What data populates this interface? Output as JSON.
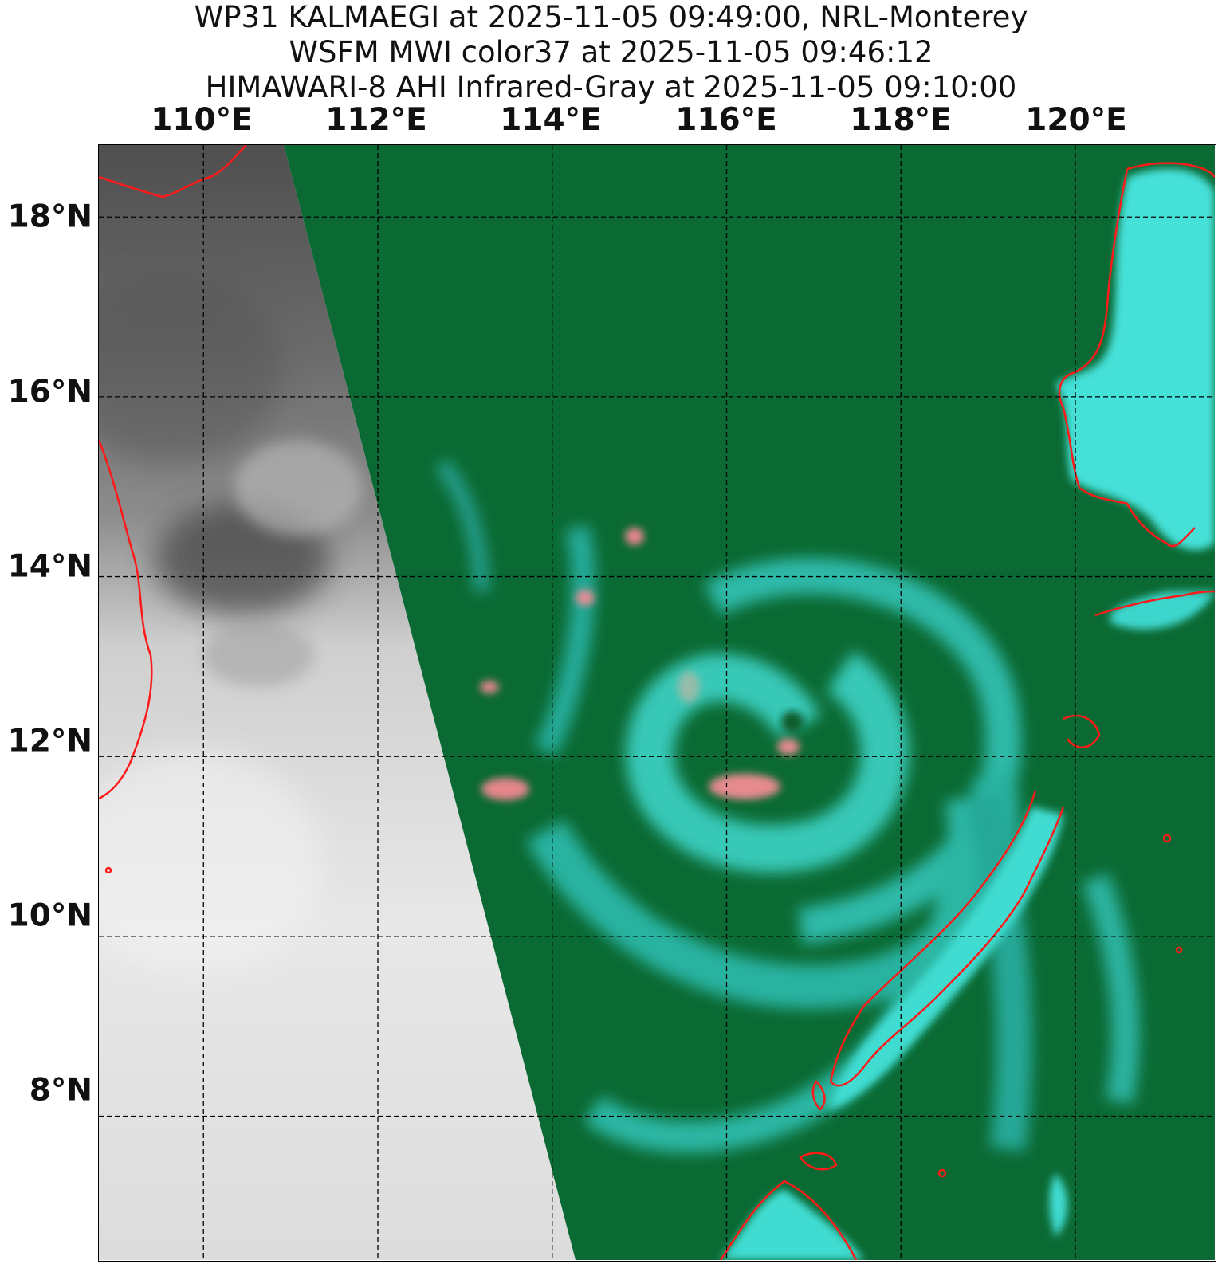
{
  "title": {
    "line1": "WP31 KALMAEGI at 2025-11-05 09:49:00, NRL-Monterey",
    "line2": "WSFM MWI color37 at 2025-11-05 09:46:12",
    "line3": "HIMAWARI-8 AHI Infrared-Gray at 2025-11-05 09:10:00"
  },
  "axes": {
    "longitude_labels": [
      "110°E",
      "112°E",
      "114°E",
      "116°E",
      "118°E",
      "120°E"
    ],
    "latitude_labels": [
      "18°N",
      "16°N",
      "14°N",
      "12°N",
      "10°N",
      "8°N"
    ],
    "longitude_values": [
      110,
      112,
      114,
      116,
      118,
      120
    ],
    "latitude_values": [
      18,
      16,
      14,
      12,
      10,
      8
    ],
    "lon_range": [
      108.8,
      121.6
    ],
    "lat_range": [
      6.4,
      18.8
    ],
    "grid": "dashed"
  },
  "colors": {
    "ir_gray_dark": "#5a5a5a",
    "ir_gray_light": "#e6e6e6",
    "mwi_background": "#0b6b34",
    "mwi_cyan": "#3ee0d6",
    "mwi_pink": "#ff8a96",
    "coastline": "#ff1a1a",
    "grid": "#000000"
  }
}
